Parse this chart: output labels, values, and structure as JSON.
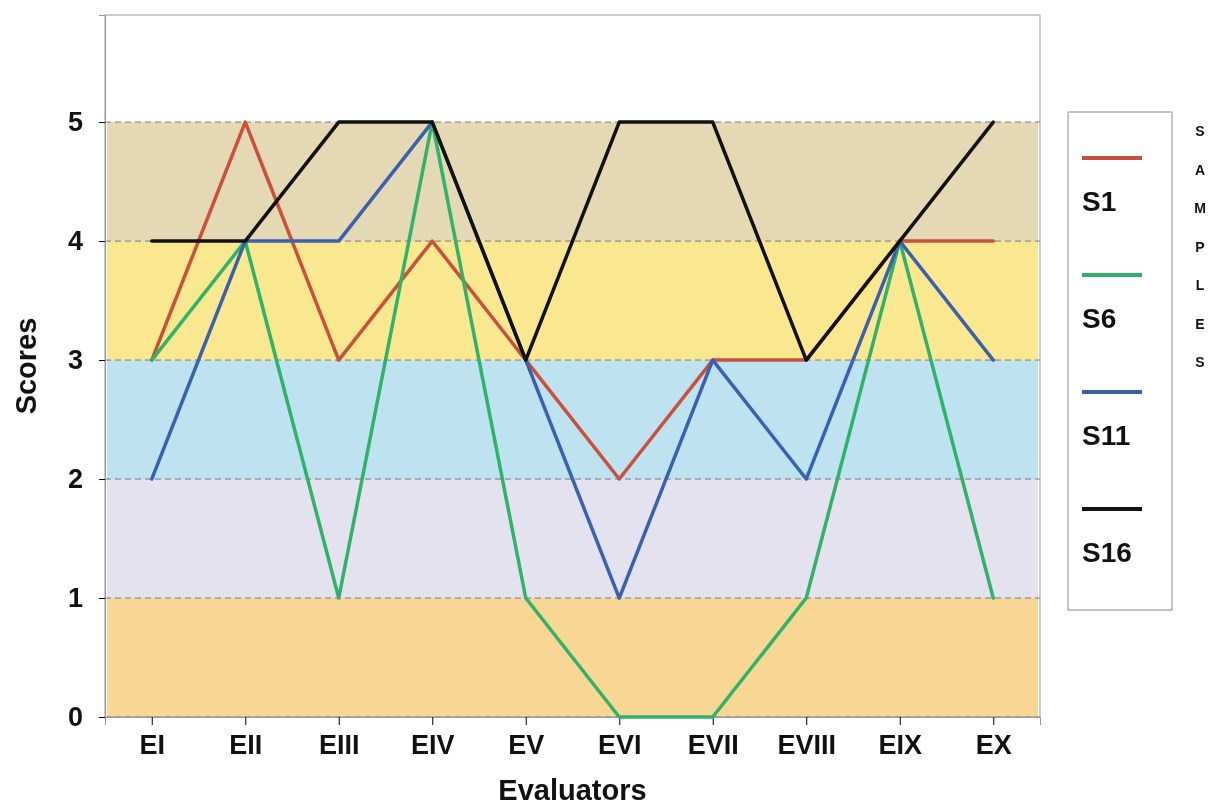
{
  "chart_data": {
    "type": "line",
    "xlabel": "Evaluators",
    "ylabel": "Scores",
    "legend_title": "SAMPLES",
    "categories": [
      "EI",
      "EII",
      "EIII",
      "EIV",
      "EV",
      "EVI",
      "EVII",
      "EVIII",
      "EIX",
      "EX"
    ],
    "series": [
      {
        "name": "S1",
        "color": "#c8503c",
        "values": [
          3,
          5,
          3,
          4,
          3,
          2,
          3,
          3,
          4,
          4
        ]
      },
      {
        "name": "S6",
        "color": "#2fb26a",
        "values": [
          3,
          4,
          1,
          5,
          1,
          0,
          0,
          1,
          4,
          1
        ]
      },
      {
        "name": "S11",
        "color": "#3a60b0",
        "values": [
          2,
          4,
          4,
          5,
          3,
          1,
          3,
          2,
          4,
          3
        ]
      },
      {
        "name": "S16",
        "color": "#111111",
        "values": [
          4,
          4,
          5,
          5,
          3,
          5,
          5,
          3,
          4,
          5
        ]
      }
    ],
    "ylim": [
      0,
      5.9
    ],
    "yticks": [
      0,
      1,
      2,
      3,
      4,
      5
    ],
    "grid": "y",
    "legend": "right",
    "marker": "none",
    "line_style": "solid",
    "bands": [
      {
        "axis": "y",
        "from": 0,
        "to": 1,
        "color": "#f6c870"
      },
      {
        "axis": "y",
        "from": 1,
        "to": 2,
        "color": "#dcd8ea"
      },
      {
        "axis": "y",
        "from": 2,
        "to": 3,
        "color": "#aad8ec"
      },
      {
        "axis": "y",
        "from": 3,
        "to": 4,
        "color": "#f8e06c"
      },
      {
        "axis": "y",
        "from": 4,
        "to": 5,
        "color": "#dccb9c"
      }
    ]
  }
}
